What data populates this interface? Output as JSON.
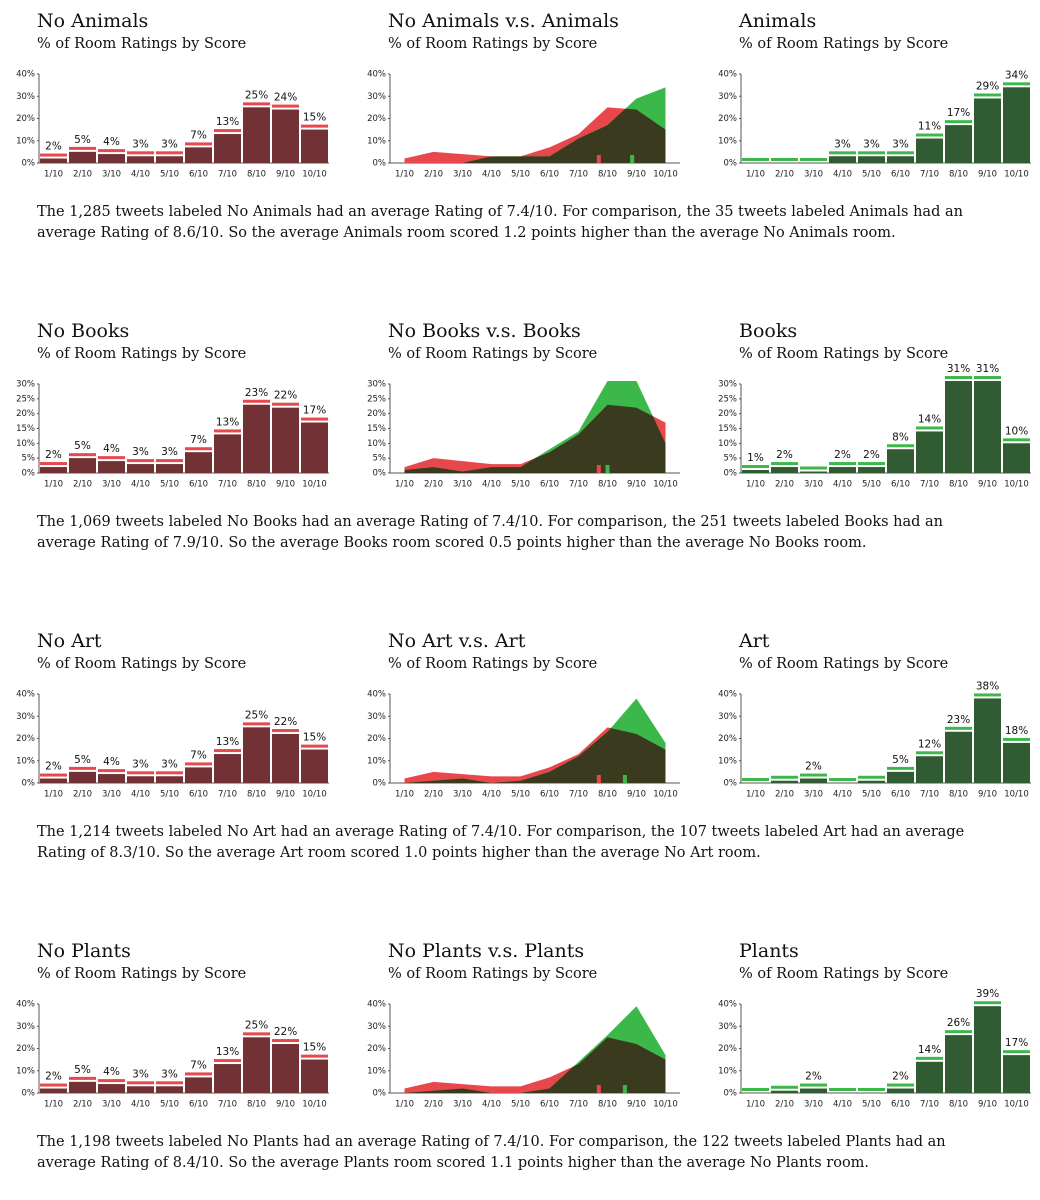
{
  "chart_data": [
    {
      "type": "bar",
      "title": "No Animals",
      "subtitle": "% of Room Ratings by Score",
      "categories": [
        "1/10",
        "2/10",
        "3/10",
        "4/10",
        "5/10",
        "6/10",
        "7/10",
        "8/10",
        "9/10",
        "10/10"
      ],
      "values": [
        2,
        5,
        4,
        3,
        3,
        7,
        13,
        25,
        24,
        15
      ],
      "value_labels": [
        "2%",
        "5%",
        "4%",
        "3%",
        "3%",
        "7%",
        "13%",
        "25%",
        "24%",
        "15%"
      ],
      "color": "#e8474c",
      "ylim": [
        0,
        40
      ],
      "yticks": [
        {
          "value": 0,
          "label": "0%"
        },
        {
          "value": 10,
          "label": "10%"
        },
        {
          "value": 20,
          "label": "20%"
        },
        {
          "value": 30,
          "label": "30%"
        },
        {
          "value": 40,
          "label": "40%"
        }
      ]
    },
    {
      "type": "area",
      "title": "No Animals v.s. Animals",
      "subtitle": "% of Room Ratings by Score",
      "categories": [
        "1/10",
        "2/10",
        "3/10",
        "4/10",
        "5/10",
        "6/10",
        "7/10",
        "8/10",
        "9/10",
        "10/10"
      ],
      "series": [
        {
          "color": "#e8474c",
          "values": [
            2,
            5,
            4,
            3,
            3,
            7,
            13,
            25,
            24,
            15
          ]
        },
        {
          "color": "#3cb84a",
          "values": [
            0,
            0,
            0,
            3,
            3,
            3,
            11,
            17,
            29,
            34
          ]
        }
      ],
      "markers": [
        {
          "x": 7.7,
          "color": "#e8474c"
        },
        {
          "x": 8.85,
          "color": "#3cb84a"
        }
      ],
      "ylim": [
        0,
        40
      ],
      "yticks": [
        {
          "value": 0,
          "label": "0%"
        },
        {
          "value": 10,
          "label": "10%"
        },
        {
          "value": 20,
          "label": "20%"
        },
        {
          "value": 30,
          "label": "30%"
        },
        {
          "value": 40,
          "label": "40%"
        }
      ]
    },
    {
      "type": "bar",
      "title": "Animals",
      "subtitle": "% of Room Ratings by Score",
      "categories": [
        "1/10",
        "2/10",
        "3/10",
        "4/10",
        "5/10",
        "6/10",
        "7/10",
        "8/10",
        "9/10",
        "10/10"
      ],
      "values": [
        0,
        0,
        0,
        3,
        3,
        3,
        11,
        17,
        29,
        34
      ],
      "value_labels": [
        null,
        null,
        null,
        "3%",
        "3%",
        "3%",
        "11%",
        "17%",
        "29%",
        "34%"
      ],
      "color": "#3cb84a",
      "ylim": [
        0,
        40
      ],
      "yticks": [
        {
          "value": 0,
          "label": "0%"
        },
        {
          "value": 10,
          "label": "10%"
        },
        {
          "value": 20,
          "label": "20%"
        },
        {
          "value": 30,
          "label": "30%"
        },
        {
          "value": 40,
          "label": "40%"
        }
      ]
    },
    {
      "type": "bar",
      "title": "No Books",
      "subtitle": "% of Room Ratings by Score",
      "categories": [
        "1/10",
        "2/10",
        "3/10",
        "4/10",
        "5/10",
        "6/10",
        "7/10",
        "8/10",
        "9/10",
        "10/10"
      ],
      "values": [
        2,
        5,
        4,
        3,
        3,
        7,
        13,
        23,
        22,
        17
      ],
      "value_labels": [
        "2%",
        "5%",
        "4%",
        "3%",
        "3%",
        "7%",
        "13%",
        "23%",
        "22%",
        "17%"
      ],
      "color": "#e8474c",
      "ylim": [
        0,
        30
      ],
      "yticks": [
        {
          "value": 0,
          "label": "0%"
        },
        {
          "value": 5,
          "label": "5%"
        },
        {
          "value": 10,
          "label": "10%"
        },
        {
          "value": 15,
          "label": "15%"
        },
        {
          "value": 20,
          "label": "20%"
        },
        {
          "value": 25,
          "label": "25%"
        },
        {
          "value": 30,
          "label": "30%"
        }
      ]
    },
    {
      "type": "area",
      "title": "No Books v.s. Books",
      "subtitle": "% of Room Ratings by Score",
      "categories": [
        "1/10",
        "2/10",
        "3/10",
        "4/10",
        "5/10",
        "6/10",
        "7/10",
        "8/10",
        "9/10",
        "10/10"
      ],
      "series": [
        {
          "color": "#e8474c",
          "values": [
            2,
            5,
            4,
            3,
            3,
            7,
            13,
            23,
            22,
            17
          ]
        },
        {
          "color": "#3cb84a",
          "values": [
            1,
            2,
            0.5,
            2,
            2,
            8,
            14,
            31,
            31,
            10
          ]
        }
      ],
      "markers": [
        {
          "x": 7.7,
          "color": "#e8474c"
        },
        {
          "x": 8.0,
          "color": "#3cb84a"
        }
      ],
      "ylim": [
        0,
        30
      ],
      "yticks": [
        {
          "value": 0,
          "label": "0%"
        },
        {
          "value": 5,
          "label": "5%"
        },
        {
          "value": 10,
          "label": "10%"
        },
        {
          "value": 15,
          "label": "15%"
        },
        {
          "value": 20,
          "label": "20%"
        },
        {
          "value": 25,
          "label": "25%"
        },
        {
          "value": 30,
          "label": "30%"
        }
      ]
    },
    {
      "type": "bar",
      "title": "Books",
      "subtitle": "% of Room Ratings by Score",
      "categories": [
        "1/10",
        "2/10",
        "3/10",
        "4/10",
        "5/10",
        "6/10",
        "7/10",
        "8/10",
        "9/10",
        "10/10"
      ],
      "values": [
        1,
        2,
        0.5,
        2,
        2,
        8,
        14,
        31,
        31,
        10
      ],
      "value_labels": [
        "1%",
        "2%",
        null,
        "2%",
        "2%",
        "8%",
        "14%",
        "31%",
        "31%",
        "10%"
      ],
      "color": "#3cb84a",
      "ylim": [
        0,
        30
      ],
      "yticks": [
        {
          "value": 0,
          "label": "0%"
        },
        {
          "value": 5,
          "label": "5%"
        },
        {
          "value": 10,
          "label": "10%"
        },
        {
          "value": 15,
          "label": "15%"
        },
        {
          "value": 20,
          "label": "20%"
        },
        {
          "value": 25,
          "label": "25%"
        },
        {
          "value": 30,
          "label": "30%"
        }
      ]
    },
    {
      "type": "bar",
      "title": "No Art",
      "subtitle": "% of Room Ratings by Score",
      "categories": [
        "1/10",
        "2/10",
        "3/10",
        "4/10",
        "5/10",
        "6/10",
        "7/10",
        "8/10",
        "9/10",
        "10/10"
      ],
      "values": [
        2,
        5,
        4,
        3,
        3,
        7,
        13,
        25,
        22,
        15
      ],
      "value_labels": [
        "2%",
        "5%",
        "4%",
        "3%",
        "3%",
        "7%",
        "13%",
        "25%",
        "22%",
        "15%"
      ],
      "color": "#e8474c",
      "ylim": [
        0,
        40
      ],
      "yticks": [
        {
          "value": 0,
          "label": "0%"
        },
        {
          "value": 10,
          "label": "10%"
        },
        {
          "value": 20,
          "label": "20%"
        },
        {
          "value": 30,
          "label": "30%"
        },
        {
          "value": 40,
          "label": "40%"
        }
      ]
    },
    {
      "type": "area",
      "title": "No Art v.s. Art",
      "subtitle": "% of Room Ratings by Score",
      "categories": [
        "1/10",
        "2/10",
        "3/10",
        "4/10",
        "5/10",
        "6/10",
        "7/10",
        "8/10",
        "9/10",
        "10/10"
      ],
      "series": [
        {
          "color": "#e8474c",
          "values": [
            2,
            5,
            4,
            3,
            3,
            7,
            13,
            25,
            22,
            15
          ]
        },
        {
          "color": "#3cb84a",
          "values": [
            0,
            1,
            2,
            0,
            1,
            5,
            12,
            23,
            38,
            18
          ]
        }
      ],
      "markers": [
        {
          "x": 7.7,
          "color": "#e8474c"
        },
        {
          "x": 8.6,
          "color": "#3cb84a"
        }
      ],
      "ylim": [
        0,
        40
      ],
      "yticks": [
        {
          "value": 0,
          "label": "0%"
        },
        {
          "value": 10,
          "label": "10%"
        },
        {
          "value": 20,
          "label": "20%"
        },
        {
          "value": 30,
          "label": "30%"
        },
        {
          "value": 40,
          "label": "40%"
        }
      ]
    },
    {
      "type": "bar",
      "title": "Art",
      "subtitle": "% of Room Ratings by Score",
      "categories": [
        "1/10",
        "2/10",
        "3/10",
        "4/10",
        "5/10",
        "6/10",
        "7/10",
        "8/10",
        "9/10",
        "10/10"
      ],
      "values": [
        0,
        1,
        2,
        0,
        1,
        5,
        12,
        23,
        38,
        18
      ],
      "value_labels": [
        null,
        null,
        "2%",
        null,
        null,
        "5%",
        "12%",
        "23%",
        "38%",
        "18%"
      ],
      "color": "#3cb84a",
      "ylim": [
        0,
        40
      ],
      "yticks": [
        {
          "value": 0,
          "label": "0%"
        },
        {
          "value": 10,
          "label": "10%"
        },
        {
          "value": 20,
          "label": "20%"
        },
        {
          "value": 30,
          "label": "30%"
        },
        {
          "value": 40,
          "label": "40%"
        }
      ]
    },
    {
      "type": "bar",
      "title": "No Plants",
      "subtitle": "% of Room Ratings by Score",
      "categories": [
        "1/10",
        "2/10",
        "3/10",
        "4/10",
        "5/10",
        "6/10",
        "7/10",
        "8/10",
        "9/10",
        "10/10"
      ],
      "values": [
        2,
        5,
        4,
        3,
        3,
        7,
        13,
        25,
        22,
        15
      ],
      "value_labels": [
        "2%",
        "5%",
        "4%",
        "3%",
        "3%",
        "7%",
        "13%",
        "25%",
        "22%",
        "15%"
      ],
      "color": "#e8474c",
      "ylim": [
        0,
        40
      ],
      "yticks": [
        {
          "value": 0,
          "label": "0%"
        },
        {
          "value": 10,
          "label": "10%"
        },
        {
          "value": 20,
          "label": "20%"
        },
        {
          "value": 30,
          "label": "30%"
        },
        {
          "value": 40,
          "label": "40%"
        }
      ]
    },
    {
      "type": "area",
      "title": "No Plants v.s. Plants",
      "subtitle": "% of Room Ratings by Score",
      "categories": [
        "1/10",
        "2/10",
        "3/10",
        "4/10",
        "5/10",
        "6/10",
        "7/10",
        "8/10",
        "9/10",
        "10/10"
      ],
      "series": [
        {
          "color": "#e8474c",
          "values": [
            2,
            5,
            4,
            3,
            3,
            7,
            13,
            25,
            22,
            15
          ]
        },
        {
          "color": "#3cb84a",
          "values": [
            0,
            1,
            2,
            0,
            0,
            2,
            14,
            26,
            39,
            17
          ]
        }
      ],
      "markers": [
        {
          "x": 7.7,
          "color": "#e8474c"
        },
        {
          "x": 8.6,
          "color": "#3cb84a"
        }
      ],
      "ylim": [
        0,
        40
      ],
      "yticks": [
        {
          "value": 0,
          "label": "0%"
        },
        {
          "value": 10,
          "label": "10%"
        },
        {
          "value": 20,
          "label": "20%"
        },
        {
          "value": 30,
          "label": "30%"
        },
        {
          "value": 40,
          "label": "40%"
        }
      ]
    },
    {
      "type": "bar",
      "title": "Plants",
      "subtitle": "% of Room Ratings by Score",
      "categories": [
        "1/10",
        "2/10",
        "3/10",
        "4/10",
        "5/10",
        "6/10",
        "7/10",
        "8/10",
        "9/10",
        "10/10"
      ],
      "values": [
        0,
        1,
        2,
        0,
        0,
        2,
        14,
        26,
        39,
        17
      ],
      "value_labels": [
        null,
        null,
        "2%",
        null,
        null,
        "2%",
        "14%",
        "26%",
        "39%",
        "17%"
      ],
      "color": "#3cb84a",
      "ylim": [
        0,
        40
      ],
      "yticks": [
        {
          "value": 0,
          "label": "0%"
        },
        {
          "value": 10,
          "label": "10%"
        },
        {
          "value": 20,
          "label": "20%"
        },
        {
          "value": 30,
          "label": "30%"
        },
        {
          "value": 40,
          "label": "40%"
        }
      ]
    }
  ],
  "paragraphs": [
    "The 1,285 tweets labeled No Animals had an average Rating of 7.4/10. For comparison, the 35 tweets labeled Animals had an average Rating of 8.6/10. So the average Animals room scored 1.2 points higher than the average No Animals room.",
    "The 1,069 tweets labeled No Books had an average Rating of 7.4/10. For comparison, the 251 tweets labeled Books had an average Rating of 7.9/10. So the average Books room scored 0.5 points higher than the average No Books room.",
    "The 1,214 tweets labeled No Art had an average Rating of 7.4/10. For comparison, the 107 tweets labeled Art had an average Rating of 8.3/10. So the average Art room scored 1.0 points higher than the average No Art room.",
    "The 1,198 tweets labeled No Plants had an average Rating of 7.4/10. For comparison, the 122 tweets labeled Plants had an average Rating of 8.4/10. So the average Plants room scored 1.1 points higher than the average No Plants room."
  ]
}
